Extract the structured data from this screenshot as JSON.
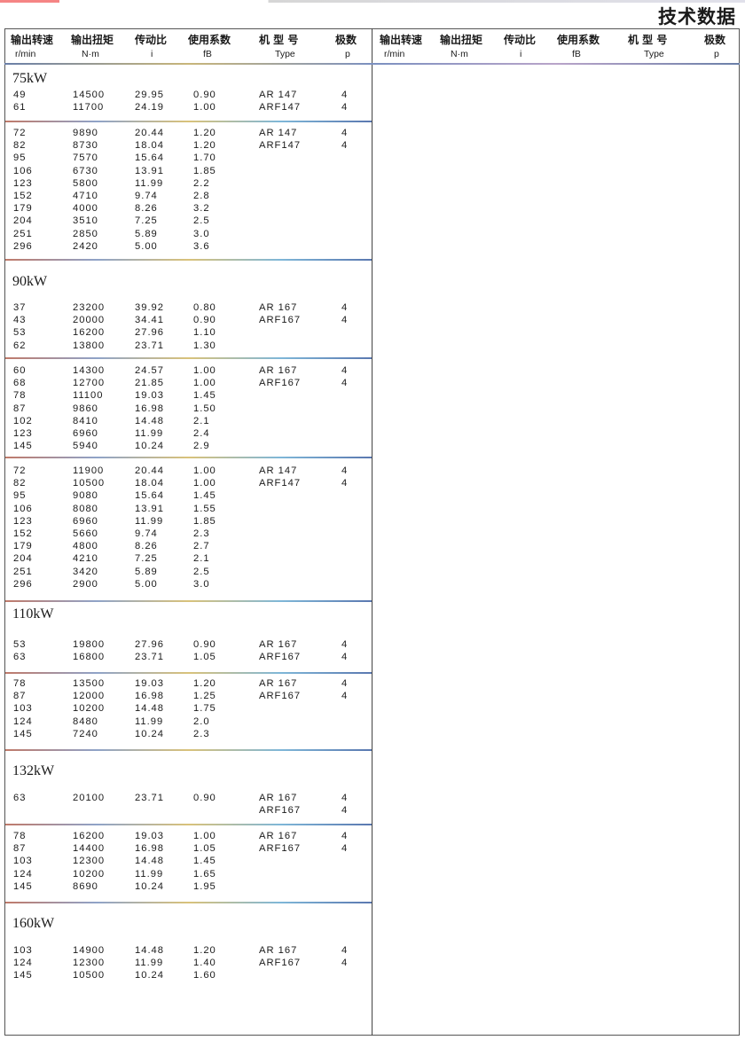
{
  "page_title": "技术数据",
  "header": {
    "cols": [
      {
        "cn": "输出转速",
        "unit": "r/min"
      },
      {
        "cn": "输出扭矩",
        "unit": "N·m"
      },
      {
        "cn": "传动比",
        "unit": "i"
      },
      {
        "cn": "使用系数",
        "unit": "fB"
      },
      {
        "cn": "机 型 号",
        "unit": "Type"
      },
      {
        "cn": "极数",
        "unit": "p"
      }
    ]
  },
  "sections": [
    {
      "title": "75kW",
      "groups": [
        {
          "rows": [
            [
              "49",
              "14500",
              "29.95",
              "0.90",
              "AR 147",
              "4"
            ],
            [
              "61",
              "11700",
              "24.19",
              "1.00",
              "ARF147",
              "4"
            ]
          ]
        },
        {
          "rows": [
            [
              "72",
              "9890",
              "20.44",
              "1.20",
              "AR 147",
              "4"
            ],
            [
              "82",
              "8730",
              "18.04",
              "1.20",
              "ARF147",
              "4"
            ],
            [
              "95",
              "7570",
              "15.64",
              "1.70",
              "",
              ""
            ],
            [
              "106",
              "6730",
              "13.91",
              "1.85",
              "",
              ""
            ],
            [
              "123",
              "5800",
              "11.99",
              "2.2",
              "",
              ""
            ],
            [
              "152",
              "4710",
              "9.74",
              "2.8",
              "",
              ""
            ],
            [
              "179",
              "4000",
              "8.26",
              "3.2",
              "",
              ""
            ],
            [
              "204",
              "3510",
              "7.25",
              "2.5",
              "",
              ""
            ],
            [
              "251",
              "2850",
              "5.89",
              "3.0",
              "",
              ""
            ],
            [
              "296",
              "2420",
              "5.00",
              "3.6",
              "",
              ""
            ]
          ]
        }
      ]
    },
    {
      "title": "90kW",
      "groups": [
        {
          "rows": [
            [
              "37",
              "23200",
              "39.92",
              "0.80",
              "AR 167",
              "4"
            ],
            [
              "43",
              "20000",
              "34.41",
              "0.90",
              "ARF167",
              "4"
            ],
            [
              "53",
              "16200",
              "27.96",
              "1.10",
              "",
              ""
            ],
            [
              "62",
              "13800",
              "23.71",
              "1.30",
              "",
              ""
            ]
          ]
        },
        {
          "rows": [
            [
              "60",
              "14300",
              "24.57",
              "1.00",
              "AR 167",
              "4"
            ],
            [
              "68",
              "12700",
              "21.85",
              "1.00",
              "ARF167",
              "4"
            ],
            [
              "78",
              "11100",
              "19.03",
              "1.45",
              "",
              ""
            ],
            [
              "87",
              "9860",
              "16.98",
              "1.50",
              "",
              ""
            ],
            [
              "102",
              "8410",
              "14.48",
              "2.1",
              "",
              ""
            ],
            [
              "123",
              "6960",
              "11.99",
              "2.4",
              "",
              ""
            ],
            [
              "145",
              "5940",
              "10.24",
              "2.9",
              "",
              ""
            ]
          ]
        },
        {
          "rows": [
            [
              "72",
              "11900",
              "20.44",
              "1.00",
              "AR 147",
              "4"
            ],
            [
              "82",
              "10500",
              "18.04",
              "1.00",
              "ARF147",
              "4"
            ],
            [
              "95",
              "9080",
              "15.64",
              "1.45",
              "",
              ""
            ],
            [
              "106",
              "8080",
              "13.91",
              "1.55",
              "",
              ""
            ],
            [
              "123",
              "6960",
              "11.99",
              "1.85",
              "",
              ""
            ],
            [
              "152",
              "5660",
              "9.74",
              "2.3",
              "",
              ""
            ],
            [
              "179",
              "4800",
              "8.26",
              "2.7",
              "",
              ""
            ],
            [
              "204",
              "4210",
              "7.25",
              "2.1",
              "",
              ""
            ],
            [
              "251",
              "3420",
              "5.89",
              "2.5",
              "",
              ""
            ],
            [
              "296",
              "2900",
              "5.00",
              "3.0",
              "",
              ""
            ]
          ]
        }
      ]
    },
    {
      "title": "110kW",
      "groups": [
        {
          "rows": [
            [
              "53",
              "19800",
              "27.96",
              "0.90",
              "AR 167",
              "4"
            ],
            [
              "63",
              "16800",
              "23.71",
              "1.05",
              "ARF167",
              "4"
            ]
          ]
        },
        {
          "rows": [
            [
              "78",
              "13500",
              "19.03",
              "1.20",
              "AR 167",
              "4"
            ],
            [
              "87",
              "12000",
              "16.98",
              "1.25",
              "ARF167",
              "4"
            ],
            [
              "103",
              "10200",
              "14.48",
              "1.75",
              "",
              ""
            ],
            [
              "124",
              "8480",
              "11.99",
              "2.0",
              "",
              ""
            ],
            [
              "145",
              "7240",
              "10.24",
              "2.3",
              "",
              ""
            ]
          ]
        }
      ]
    },
    {
      "title": "132kW",
      "groups": [
        {
          "rows": [
            [
              "63",
              "20100",
              "23.71",
              "0.90",
              "AR 167",
              "4"
            ],
            [
              "",
              "",
              "",
              "",
              "ARF167",
              "4"
            ]
          ]
        },
        {
          "rows": [
            [
              "78",
              "16200",
              "19.03",
              "1.00",
              "AR 167",
              "4"
            ],
            [
              "87",
              "14400",
              "16.98",
              "1.05",
              "ARF167",
              "4"
            ],
            [
              "103",
              "12300",
              "14.48",
              "1.45",
              "",
              ""
            ],
            [
              "124",
              "10200",
              "11.99",
              "1.65",
              "",
              ""
            ],
            [
              "145",
              "8690",
              "10.24",
              "1.95",
              "",
              ""
            ]
          ]
        }
      ]
    },
    {
      "title": "160kW",
      "groups": [
        {
          "rows": [
            [
              "103",
              "14900",
              "14.48",
              "1.20",
              "AR 167",
              "4"
            ],
            [
              "124",
              "12300",
              "11.99",
              "1.40",
              "ARF167",
              "4"
            ],
            [
              "145",
              "10500",
              "10.24",
              "1.60",
              "",
              ""
            ]
          ]
        }
      ]
    }
  ]
}
